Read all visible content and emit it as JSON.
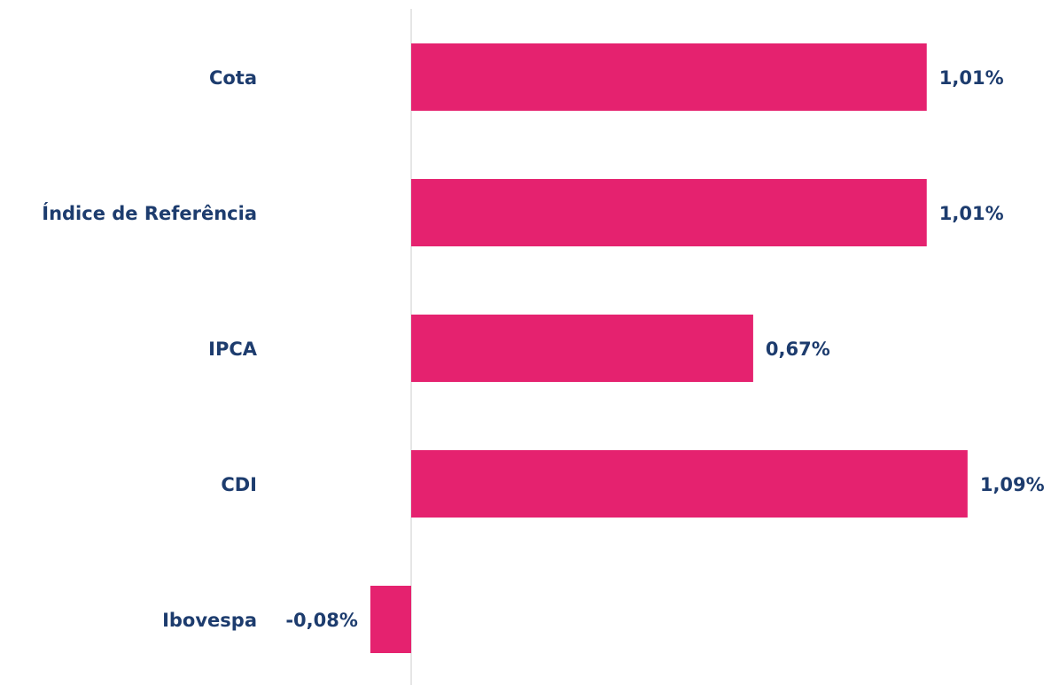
{
  "chart_data": {
    "type": "hbar",
    "categories": [
      "Cota",
      "Índice de Referência",
      "IPCA",
      "CDI",
      "Ibovespa"
    ],
    "values": [
      1.01,
      1.01,
      0.67,
      1.09,
      -0.08
    ],
    "value_labels": [
      "1,01%",
      "1,01%",
      "0,67%",
      "1,09%",
      "-0,08%"
    ],
    "color": "#e5226f",
    "xlim": [
      -0.1,
      1.2
    ]
  }
}
